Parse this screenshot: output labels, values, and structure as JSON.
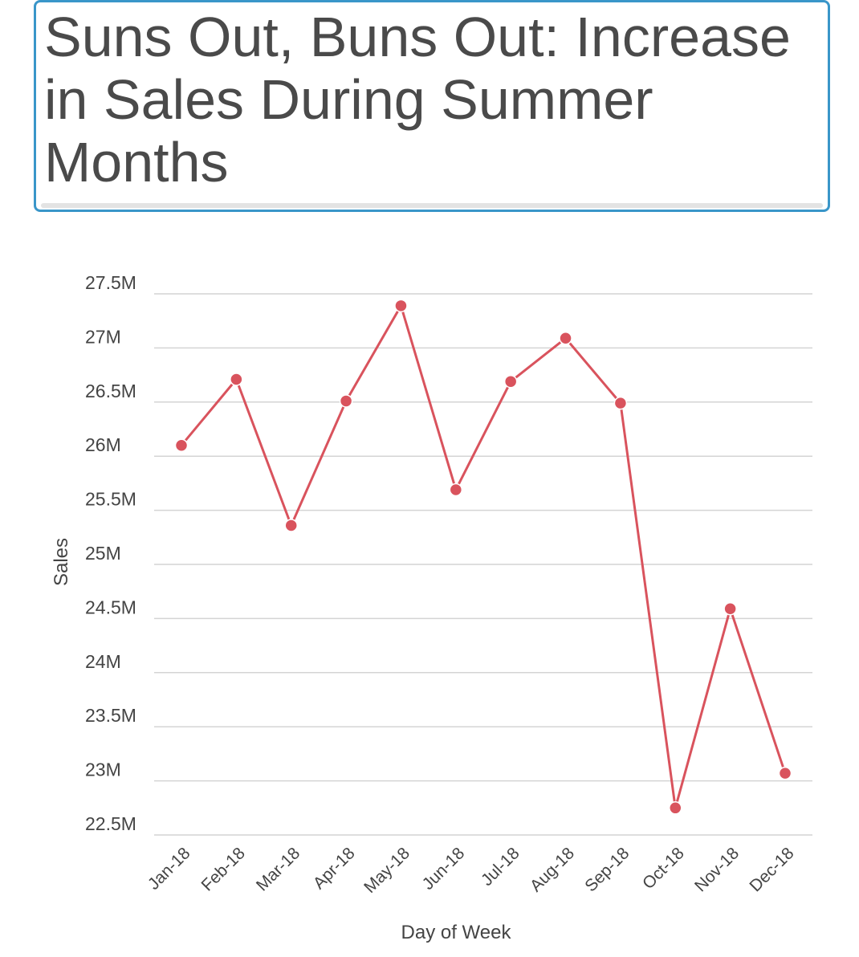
{
  "chart_data": {
    "type": "line",
    "title": "Suns Out, Buns Out: Increase in Sales During Summer Months",
    "xlabel": "Day of Week",
    "ylabel": "Sales",
    "categories": [
      "Jan-18",
      "Feb-18",
      "Mar-18",
      "Apr-18",
      "May-18",
      "Jun-18",
      "Jul-18",
      "Aug-18",
      "Sep-18",
      "Oct-18",
      "Nov-18",
      "Dec-18"
    ],
    "series": [
      {
        "values": [
          26100000,
          26710000,
          25360000,
          26510000,
          27390000,
          25690000,
          26690000,
          27090000,
          26490000,
          22750000,
          24590000,
          23070000
        ]
      }
    ],
    "ylim": [
      22500000,
      27500000
    ],
    "yticks": [
      22500000,
      23000000,
      23500000,
      24000000,
      24500000,
      25000000,
      25500000,
      26000000,
      26500000,
      27000000,
      27500000
    ],
    "ytick_labels": [
      "22.5M",
      "23M",
      "23.5M",
      "24M",
      "24.5M",
      "25M",
      "25.5M",
      "26M",
      "26.5M",
      "27M",
      "27.5M"
    ],
    "grid": true,
    "line_color": "#d9535d"
  }
}
